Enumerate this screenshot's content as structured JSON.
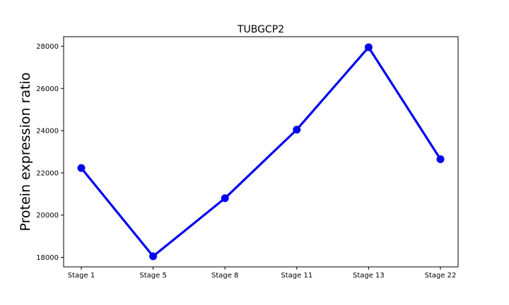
{
  "chart_data": {
    "type": "line",
    "title": "TUBGCP2",
    "xlabel": "",
    "ylabel": "Protein expression ratio",
    "categories": [
      "Stage 1",
      "Stage 5",
      "Stage 8",
      "Stage 11",
      "Stage 13",
      "Stage 22"
    ],
    "series": [
      {
        "values": [
          22230,
          18050,
          20800,
          24050,
          27950,
          22650
        ],
        "color": "#0000ee"
      }
    ],
    "ylim": [
      17550,
      28450
    ],
    "yticks": [
      18000,
      20000,
      22000,
      24000,
      26000,
      28000
    ],
    "ytick_labels": [
      "18000",
      "20000",
      "22000",
      "24000",
      "26000",
      "28000"
    ],
    "grid": false,
    "legend": "none"
  }
}
